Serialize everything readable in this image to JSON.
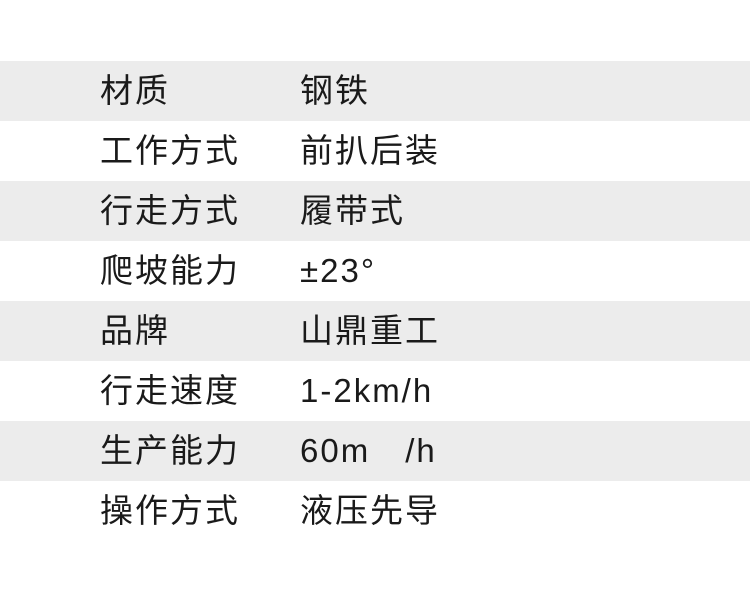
{
  "spec_table": {
    "rows": [
      {
        "label": "材质",
        "value": "钢铁"
      },
      {
        "label": "工作方式",
        "value": "前扒后装"
      },
      {
        "label": "行走方式",
        "value": "履带式"
      },
      {
        "label": "爬坡能力",
        "value": "±23°"
      },
      {
        "label": "品牌",
        "value": "山鼎重工"
      },
      {
        "label": "行走速度",
        "value": "1-2km/h"
      },
      {
        "label": "生产能力",
        "value": "60m　/h"
      },
      {
        "label": "操作方式",
        "value": "液压先导"
      }
    ],
    "colors": {
      "stripe": "#ececec",
      "background": "#ffffff",
      "text": "#1a1a1a"
    }
  }
}
